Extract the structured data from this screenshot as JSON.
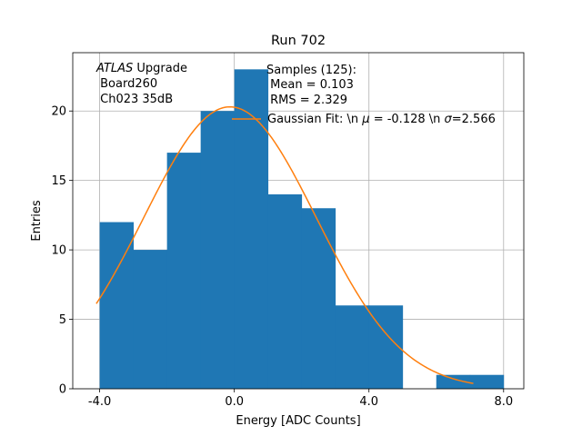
{
  "chart_data": {
    "type": "bar",
    "title": "Run 702",
    "xlabel": "Energy [ADC Counts]",
    "ylabel": "Entries",
    "xlim": [
      -4.8,
      8.6
    ],
    "ylim": [
      0,
      24.2
    ],
    "xticks": [
      -4.0,
      0.0,
      4.0,
      8.0
    ],
    "xtick_labels": [
      "-4.0",
      "0.0",
      "4.0",
      "8.0"
    ],
    "yticks": [
      0,
      5,
      10,
      15,
      20
    ],
    "ytick_labels": [
      "0",
      "5",
      "10",
      "15",
      "20"
    ],
    "grid": true,
    "bins": [
      {
        "x0": -4.0,
        "x1": -3.0,
        "count": 12
      },
      {
        "x0": -3.0,
        "x1": -2.0,
        "count": 10
      },
      {
        "x0": -2.0,
        "x1": -1.0,
        "count": 17
      },
      {
        "x0": -1.0,
        "x1": 0.0,
        "count": 20
      },
      {
        "x0": 0.0,
        "x1": 1.0,
        "count": 23
      },
      {
        "x0": 1.0,
        "x1": 2.0,
        "count": 14
      },
      {
        "x0": 2.0,
        "x1": 3.0,
        "count": 13
      },
      {
        "x0": 3.0,
        "x1": 4.0,
        "count": 6
      },
      {
        "x0": 4.0,
        "x1": 5.0,
        "count": 6
      },
      {
        "x0": 5.0,
        "x1": 6.0,
        "count": 0
      },
      {
        "x0": 6.0,
        "x1": 7.0,
        "count": 1
      },
      {
        "x0": 7.0,
        "x1": 8.0,
        "count": 1
      }
    ],
    "fit": {
      "mu": -0.128,
      "sigma": 2.566,
      "amplitude": 20.3,
      "x_range": [
        -4.1,
        7.1
      ]
    },
    "annotations": {
      "atlas_italic": "ATLAS",
      "atlas_rest": " Upgrade",
      "board": " Board260",
      "channel": " Ch023 35dB",
      "samples": "Samples (125):",
      "mean": " Mean = 0.103",
      "rms": " RMS = 2.329",
      "fit_prefix": "Gaussian Fit: \\n ",
      "fit_mu_symbol": "μ",
      "fit_mid": " = -0.128 \\n ",
      "fit_sigma_symbol": "σ",
      "fit_suffix": "=2.566"
    },
    "colors": {
      "bars": "#1f77b4",
      "fit": "#ff7f0e",
      "grid": "#b0b0b0"
    }
  }
}
